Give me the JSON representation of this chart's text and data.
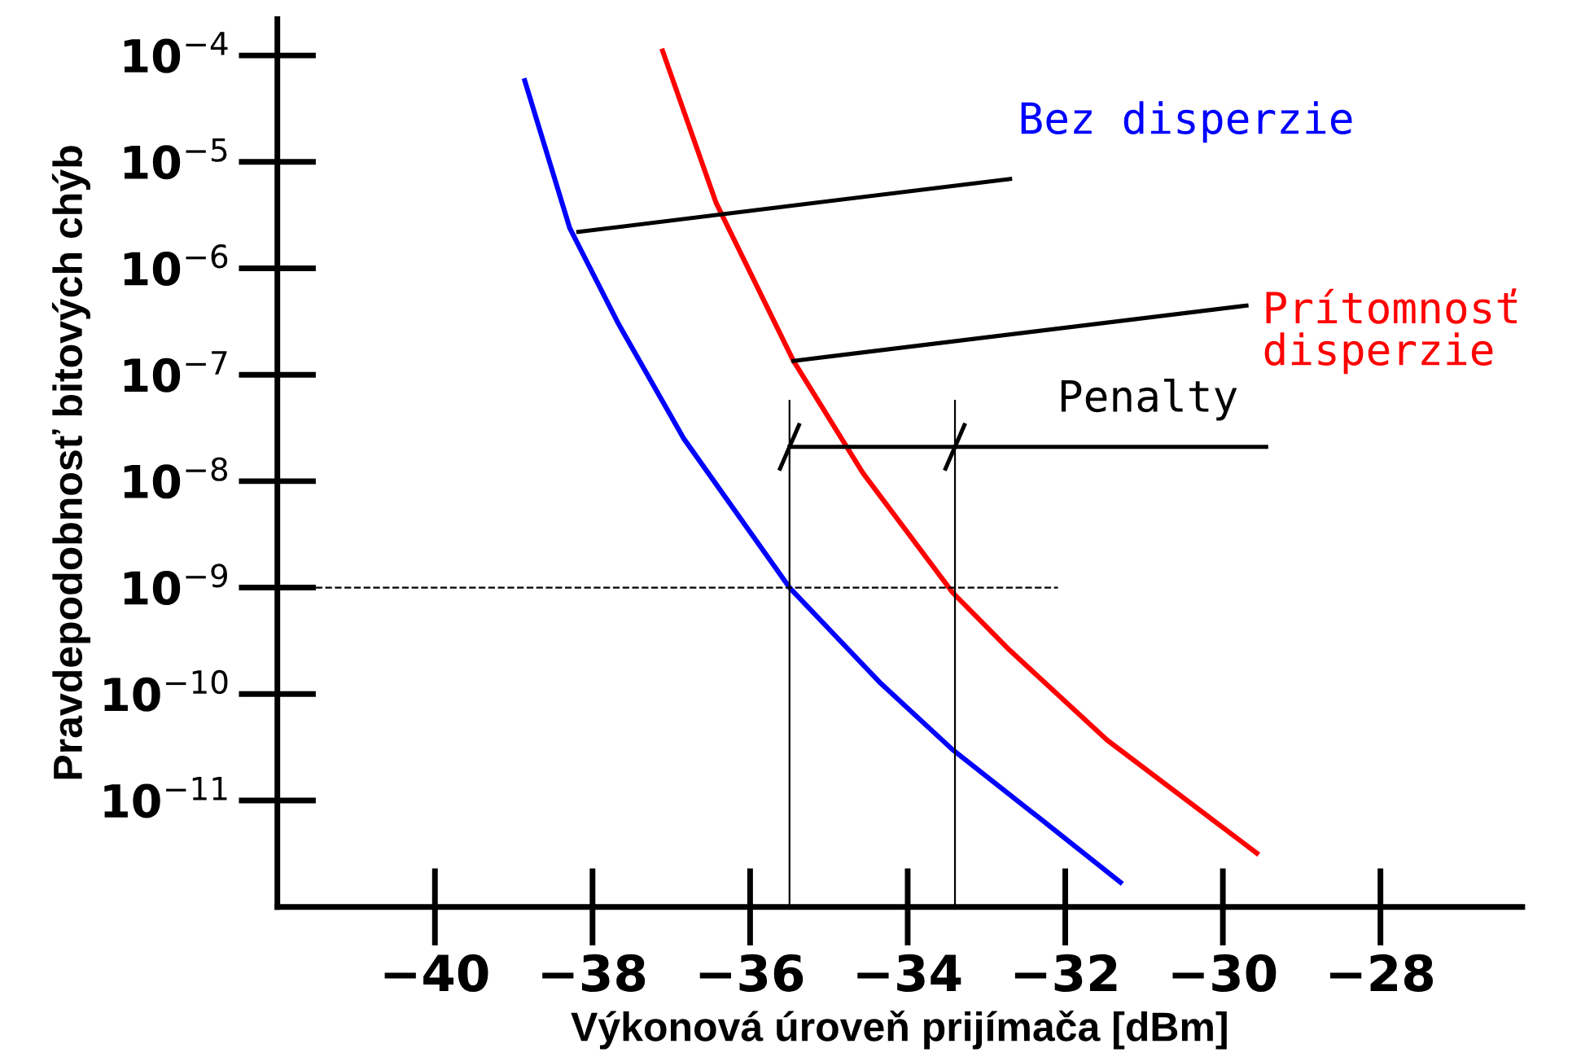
{
  "chart_data": {
    "type": "line",
    "xlabel": "Výkonová úroveň prijímača [dBm]",
    "ylabel": "Pravdepodobnosť bitových chýb",
    "log": "y",
    "grid": false,
    "marker": "none",
    "line_style": "solid",
    "xlim": [
      -42,
      -26.2
    ],
    "ylim": [
      1e-12,
      0.00022
    ],
    "xticks": [
      {
        "value": -40,
        "label": "−40"
      },
      {
        "value": -38,
        "label": "−38"
      },
      {
        "value": -36,
        "label": "−36"
      },
      {
        "value": -34,
        "label": "−34"
      },
      {
        "value": -32,
        "label": "−32"
      },
      {
        "value": -30,
        "label": "−30"
      },
      {
        "value": -28,
        "label": "−28"
      }
    ],
    "yticks": [
      {
        "value": 1e-11,
        "label": "10$^{−11}$"
      },
      {
        "value": 1e-10,
        "label": "10$^{−10}$"
      },
      {
        "value": 1e-09,
        "label": "10$^{−9}$"
      },
      {
        "value": 1e-08,
        "label": "10$^{−8}$"
      },
      {
        "value": 1e-07,
        "label": "10$^{−7}$"
      },
      {
        "value": 1e-06,
        "label": "10$^{−6}$"
      },
      {
        "value": 1e-05,
        "label": "10$^{−5}$"
      },
      {
        "value": 0.0001,
        "label": "10$^{−4}$"
      }
    ],
    "series": [
      {
        "color": "#0000ff",
        "x": [
          -38.86,
          -38.29,
          -37.67,
          -36.84,
          -35.5,
          -34.36,
          -33.43,
          -32.29,
          -31.3
        ],
        "values": [
          5.8e-05,
          2.4e-06,
          3e-07,
          2.5e-08,
          1e-09,
          1.3e-10,
          3e-11,
          6.5e-12,
          1.7e-12
        ]
      },
      {
        "color": "#ff0000",
        "x": [
          -37.11,
          -36.43,
          -35.45,
          -34.57,
          -33.43,
          -32.71,
          -31.47,
          -29.57
        ],
        "values": [
          0.00011,
          4.1e-06,
          1.35e-07,
          1.2e-08,
          9e-10,
          2.6e-10,
          3.7e-11,
          3.2e-12
        ]
      }
    ],
    "ref_lines": [
      {
        "axis": "y",
        "value": 1e-09,
        "line_style": "dashed",
        "color": "#000000"
      },
      {
        "axis": "x",
        "value": -35.5,
        "color": "#000000"
      },
      {
        "axis": "x",
        "value": -33.4,
        "color": "#000000"
      }
    ],
    "annotations": [
      {
        "text": "Bez disperzie",
        "x": -38.18,
        "y": 2.2e-06
      },
      {
        "text": "Prítomnosť\ndisperzie",
        "x": -35.45,
        "y": 1.35e-07
      },
      {
        "text": "Penalty",
        "x": -33.4,
        "y": 2.1e-08
      }
    ]
  }
}
